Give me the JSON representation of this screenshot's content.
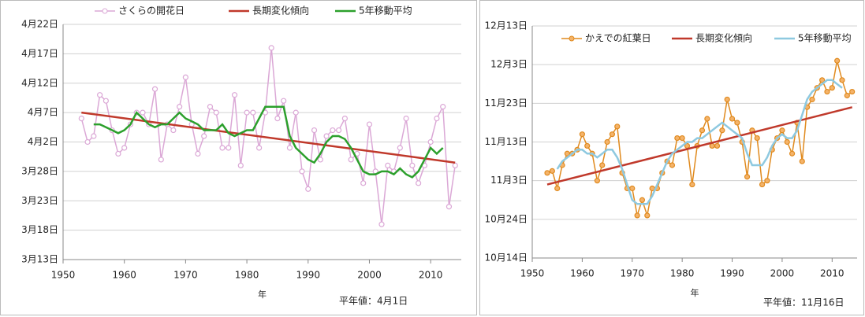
{
  "chart_data": [
    {
      "type": "line",
      "x_label": "年",
      "annotation": "平年値：4月1日",
      "x": [
        1953,
        1954,
        1955,
        1956,
        1957,
        1958,
        1959,
        1960,
        1961,
        1962,
        1963,
        1964,
        1965,
        1966,
        1967,
        1968,
        1969,
        1970,
        1971,
        1972,
        1973,
        1974,
        1975,
        1976,
        1977,
        1978,
        1979,
        1980,
        1981,
        1982,
        1983,
        1984,
        1985,
        1986,
        1987,
        1988,
        1989,
        1990,
        1991,
        1992,
        1993,
        1994,
        1995,
        1996,
        1997,
        1998,
        1999,
        2000,
        2001,
        2002,
        2003,
        2004,
        2005,
        2006,
        2007,
        2008,
        2009,
        2010,
        2011,
        2012,
        2013,
        2014
      ],
      "xlim": [
        1950,
        2015
      ],
      "xticks": [
        1950,
        1960,
        1970,
        1980,
        1990,
        2000,
        2010
      ],
      "ylim": [
        72,
        112
      ],
      "yticks": [
        {
          "value": 72,
          "label": "3月13日"
        },
        {
          "value": 77,
          "label": "3月18日"
        },
        {
          "value": 82,
          "label": "3月23日"
        },
        {
          "value": 87,
          "label": "3月28日"
        },
        {
          "value": 92,
          "label": "4月2日"
        },
        {
          "value": 97,
          "label": "4月7日"
        },
        {
          "value": 102,
          "label": "4月12日"
        },
        {
          "value": 107,
          "label": "4月17日"
        },
        {
          "value": 112,
          "label": "4月22日"
        }
      ],
      "grid": true,
      "series": [
        {
          "name": "さくらの開花日",
          "color": "#dba8d6",
          "marker": "open",
          "values": [
            96,
            92,
            93,
            100,
            99,
            94,
            90,
            91,
            95,
            97,
            97,
            95,
            101,
            89,
            95,
            94,
            98,
            103,
            95,
            90,
            93,
            98,
            97,
            91,
            91,
            100,
            88,
            97,
            97,
            91,
            97,
            108,
            96,
            99,
            91,
            97,
            87,
            84,
            94,
            89,
            93,
            94,
            94,
            96,
            89,
            90,
            85,
            95,
            87,
            78,
            88,
            87,
            91,
            96,
            88,
            85,
            88,
            92,
            96,
            98,
            81,
            88
          ]
        },
        {
          "name": "長期変化傾向",
          "color": "#c0392b",
          "x": [
            1953,
            2014
          ],
          "values": [
            97,
            88.5
          ]
        },
        {
          "name": "5年移動平均",
          "color": "#2ca02c",
          "values": [
            null,
            null,
            95,
            95,
            94.5,
            94,
            93.5,
            94,
            95,
            97,
            96,
            95,
            94.5,
            95,
            95,
            96,
            97,
            96,
            95.5,
            95,
            94,
            94,
            94,
            95,
            93.5,
            93,
            93.5,
            94,
            94,
            96,
            98,
            98,
            98,
            98,
            93,
            91,
            90,
            89,
            88.5,
            90,
            92,
            93,
            93,
            92.5,
            91,
            89,
            87,
            86.5,
            86.5,
            87,
            87,
            86.5,
            87.5,
            86.5,
            86,
            87,
            89,
            91,
            90,
            91,
            null,
            null
          ]
        }
      ]
    },
    {
      "type": "line",
      "x_label": "年",
      "annotation": "平年値：11月16日",
      "x": [
        1953,
        1954,
        1955,
        1956,
        1957,
        1958,
        1959,
        1960,
        1961,
        1962,
        1963,
        1964,
        1965,
        1966,
        1967,
        1968,
        1969,
        1970,
        1971,
        1972,
        1973,
        1974,
        1975,
        1976,
        1977,
        1978,
        1979,
        1980,
        1981,
        1982,
        1983,
        1984,
        1985,
        1986,
        1987,
        1988,
        1989,
        1990,
        1991,
        1992,
        1993,
        1994,
        1995,
        1996,
        1997,
        1998,
        1999,
        2000,
        2001,
        2002,
        2003,
        2004,
        2005,
        2006,
        2007,
        2008,
        2009,
        2010,
        2011,
        2012,
        2013,
        2014
      ],
      "xlim": [
        1950,
        2015
      ],
      "xticks": [
        1950,
        1960,
        1970,
        1980,
        1990,
        2000,
        2010
      ],
      "ylim": [
        287,
        347
      ],
      "yticks": [
        {
          "value": 287,
          "label": "10月14日"
        },
        {
          "value": 297,
          "label": "10月24日"
        },
        {
          "value": 307,
          "label": "11月3日"
        },
        {
          "value": 317,
          "label": "11月13日"
        },
        {
          "value": 327,
          "label": "11月23日"
        },
        {
          "value": 337,
          "label": "12月3日"
        },
        {
          "value": 347,
          "label": "12月13日"
        }
      ],
      "grid": true,
      "series": [
        {
          "name": "かえでの紅葉日",
          "color": "#e08a1e",
          "marker": "filled",
          "values": [
            309,
            309.5,
            305,
            311,
            314,
            314,
            315,
            319,
            316,
            314,
            307,
            311,
            317,
            319,
            321,
            309,
            305,
            305,
            298,
            302,
            298,
            305,
            305,
            309,
            312,
            311,
            318,
            318,
            316,
            306,
            316,
            320,
            323,
            316,
            316,
            320,
            328,
            323,
            322,
            317,
            308,
            320,
            318,
            306,
            307,
            315,
            318,
            320,
            317,
            314,
            322,
            312,
            326,
            328,
            331,
            333,
            330,
            331,
            338,
            333,
            329,
            330
          ]
        },
        {
          "name": "長期変化傾向",
          "color": "#c0392b",
          "x": [
            1953,
            2014
          ],
          "values": [
            306,
            326
          ]
        },
        {
          "name": "5年移動平均",
          "color": "#8ec9e0",
          "values": [
            null,
            null,
            310,
            312,
            313,
            314,
            315,
            315,
            314,
            314,
            313,
            314,
            315,
            315,
            313,
            310,
            306,
            302,
            301,
            301,
            301,
            303,
            306,
            309,
            312,
            314,
            315,
            316,
            317,
            317,
            318,
            318,
            319,
            320,
            321,
            322,
            321,
            320,
            319,
            318,
            314,
            311,
            311,
            311,
            313,
            316,
            318,
            319,
            318,
            318,
            320,
            324,
            328,
            330,
            331,
            332,
            333,
            333,
            332,
            331,
            null,
            null
          ]
        }
      ]
    }
  ]
}
